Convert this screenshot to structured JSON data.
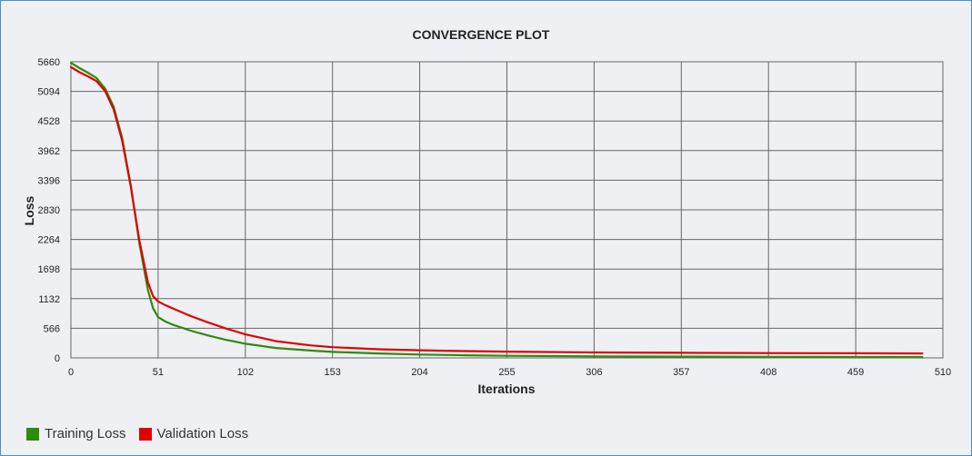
{
  "chart_data": {
    "type": "line",
    "title": "CONVERGENCE PLOT",
    "xlabel": "Iterations",
    "ylabel": "Loss",
    "xlim": [
      0,
      510
    ],
    "ylim": [
      0,
      5660
    ],
    "x_ticks": [
      0,
      51,
      102,
      153,
      204,
      255,
      306,
      357,
      408,
      459,
      510
    ],
    "y_ticks": [
      0,
      566,
      1132,
      1698,
      2264,
      2830,
      3396,
      3962,
      4528,
      5094,
      5660
    ],
    "grid": true,
    "legend_position": "bottom-left",
    "series": [
      {
        "name": "Training Loss",
        "color": "#2e8b0e",
        "points": [
          [
            0,
            5640
          ],
          [
            5,
            5540
          ],
          [
            10,
            5450
          ],
          [
            15,
            5350
          ],
          [
            20,
            5150
          ],
          [
            25,
            4800
          ],
          [
            30,
            4200
          ],
          [
            35,
            3300
          ],
          [
            40,
            2200
          ],
          [
            45,
            1300
          ],
          [
            48,
            950
          ],
          [
            51,
            780
          ],
          [
            55,
            700
          ],
          [
            60,
            630
          ],
          [
            70,
            520
          ],
          [
            80,
            430
          ],
          [
            90,
            350
          ],
          [
            102,
            270
          ],
          [
            120,
            190
          ],
          [
            140,
            140
          ],
          [
            153,
            115
          ],
          [
            180,
            85
          ],
          [
            204,
            65
          ],
          [
            230,
            50
          ],
          [
            255,
            40
          ],
          [
            306,
            30
          ],
          [
            357,
            25
          ],
          [
            408,
            20
          ],
          [
            459,
            18
          ],
          [
            498,
            16
          ]
        ]
      },
      {
        "name": "Validation Loss",
        "color": "#e00000",
        "points": [
          [
            0,
            5560
          ],
          [
            5,
            5460
          ],
          [
            10,
            5380
          ],
          [
            15,
            5290
          ],
          [
            20,
            5100
          ],
          [
            25,
            4750
          ],
          [
            30,
            4150
          ],
          [
            35,
            3280
          ],
          [
            40,
            2250
          ],
          [
            45,
            1450
          ],
          [
            48,
            1180
          ],
          [
            51,
            1080
          ],
          [
            55,
            1010
          ],
          [
            60,
            940
          ],
          [
            70,
            800
          ],
          [
            80,
            680
          ],
          [
            90,
            570
          ],
          [
            102,
            450
          ],
          [
            120,
            320
          ],
          [
            140,
            240
          ],
          [
            153,
            205
          ],
          [
            180,
            165
          ],
          [
            204,
            145
          ],
          [
            230,
            130
          ],
          [
            255,
            120
          ],
          [
            306,
            105
          ],
          [
            357,
            98
          ],
          [
            408,
            92
          ],
          [
            459,
            88
          ],
          [
            498,
            85
          ]
        ]
      }
    ]
  }
}
